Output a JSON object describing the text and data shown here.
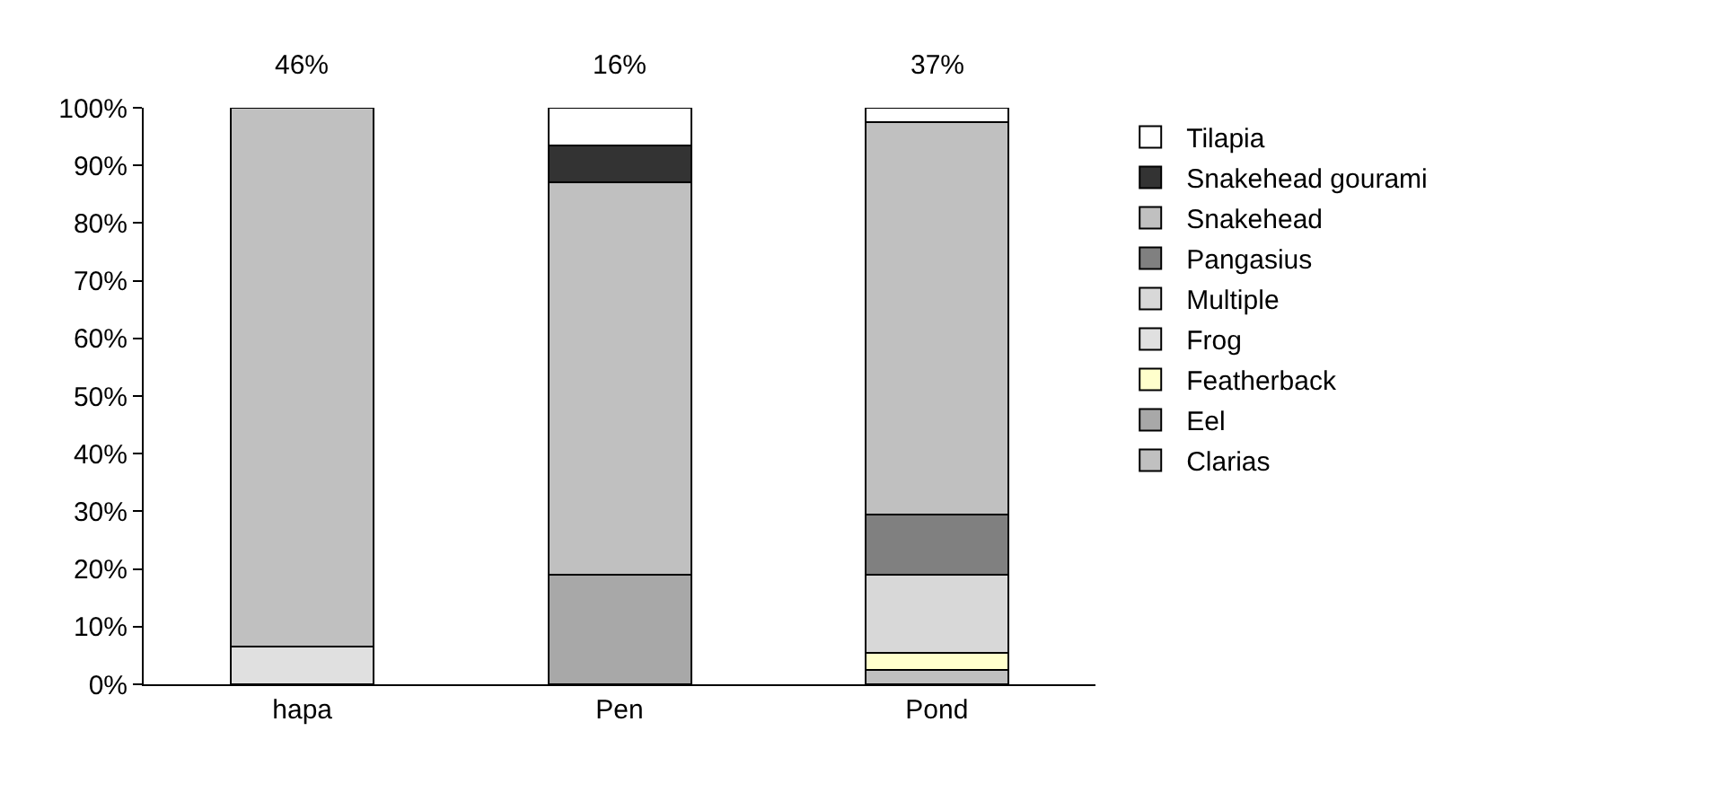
{
  "chart_data": {
    "type": "bar",
    "stacked": true,
    "categories": [
      "hapa",
      "Pen",
      "Pond"
    ],
    "series": [
      {
        "name": "Clarias",
        "color": "#c0c0c0",
        "values": [
          null,
          null,
          2.5
        ]
      },
      {
        "name": "Eel",
        "color": "#a8a8a8",
        "values": [
          null,
          19,
          null
        ]
      },
      {
        "name": "Featherback",
        "color": "#ffffcc",
        "values": [
          null,
          null,
          3
        ]
      },
      {
        "name": "Frog",
        "color": "#e0e0e0",
        "values": [
          6.5,
          null,
          null
        ]
      },
      {
        "name": "Multiple",
        "color": "#d8d8d8",
        "values": [
          null,
          null,
          13.5
        ]
      },
      {
        "name": "Pangasius",
        "color": "#808080",
        "values": [
          null,
          null,
          10.5
        ]
      },
      {
        "name": "Snakehead",
        "color": "#c0c0c0",
        "values": [
          93.5,
          68,
          68
        ]
      },
      {
        "name": "Snakehead gourami",
        "color": "#333333",
        "values": [
          null,
          6.5,
          null
        ]
      },
      {
        "name": "Tilapia",
        "color": "#ffffff",
        "values": [
          null,
          6.5,
          2.5
        ]
      }
    ],
    "annotations": [
      "46%",
      "16%",
      "37%"
    ],
    "ylim": [
      0,
      100
    ],
    "yticks": [
      {
        "value": 0,
        "label": "0%"
      },
      {
        "value": 10,
        "label": "10%"
      },
      {
        "value": 20,
        "label": "20%"
      },
      {
        "value": 30,
        "label": "30%"
      },
      {
        "value": 40,
        "label": "40%"
      },
      {
        "value": 50,
        "label": "50%"
      },
      {
        "value": 60,
        "label": "60%"
      },
      {
        "value": 70,
        "label": "70%"
      },
      {
        "value": 80,
        "label": "80%"
      },
      {
        "value": 90,
        "label": "90%"
      },
      {
        "value": 100,
        "label": "100%"
      }
    ],
    "grid": false,
    "legend": "right"
  }
}
